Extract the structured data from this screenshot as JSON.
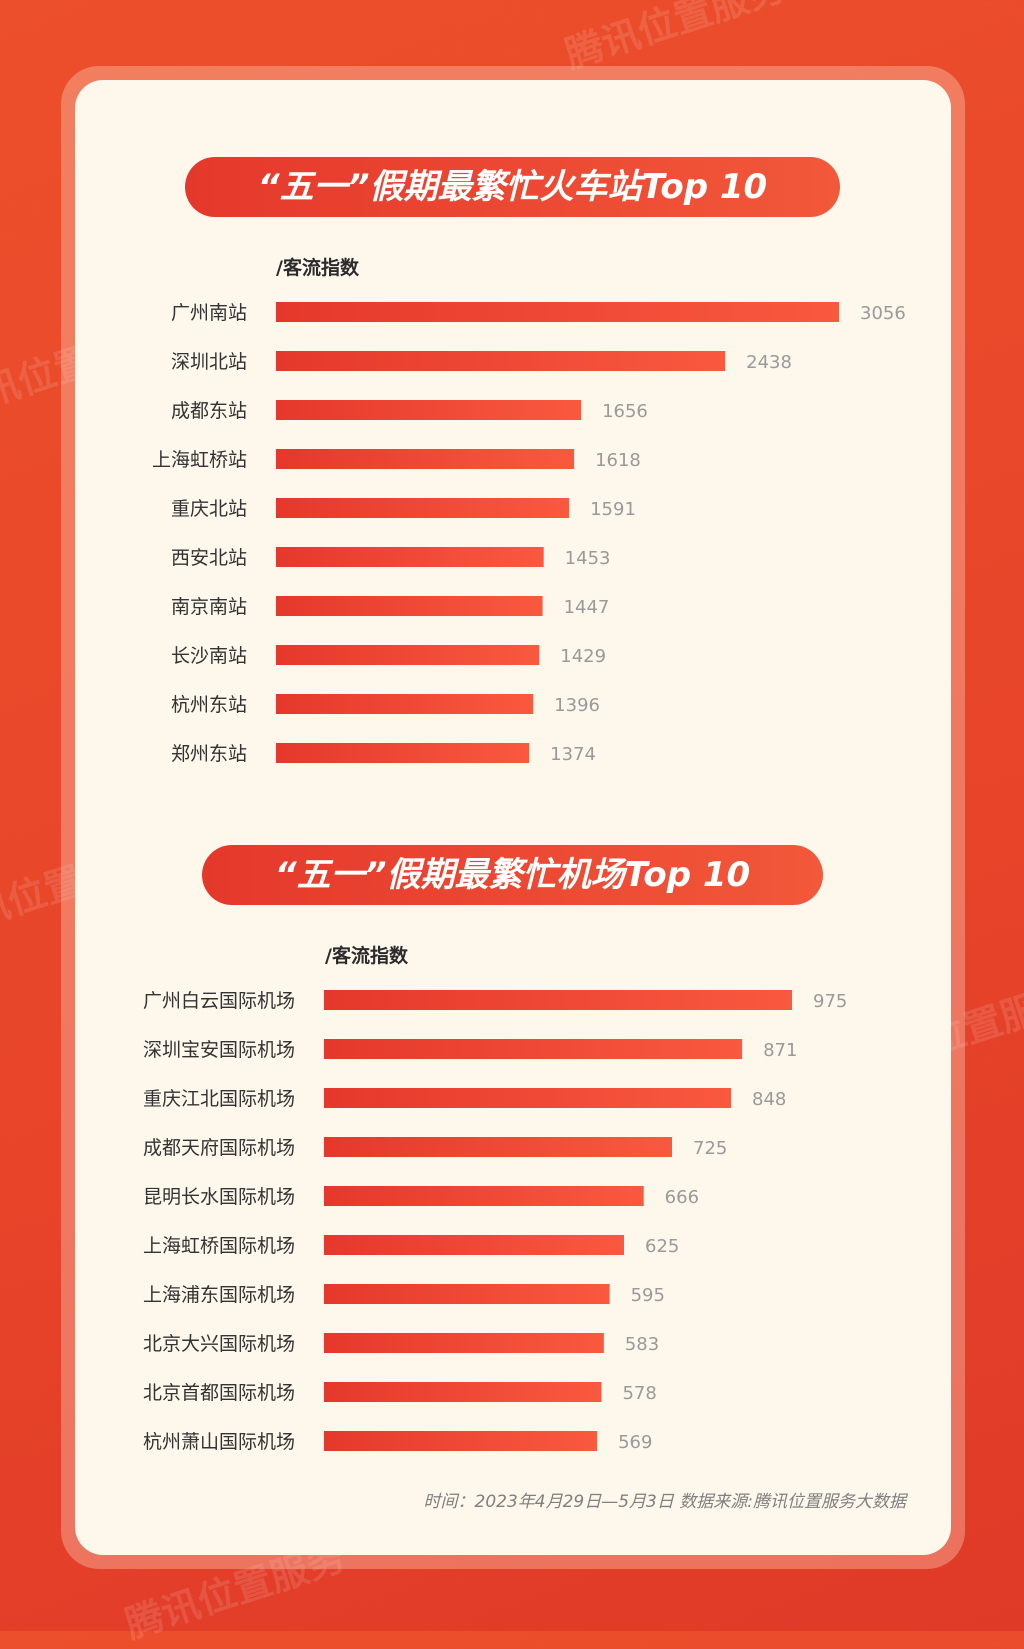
{
  "watermark": "腾讯位置服务",
  "footer": "时间：2023年4月29日—5月3日  数据来源:腾讯位置服务大数据",
  "colors": {
    "bar_start": "#e5382c",
    "bar_end": "#f9593f",
    "card_bg": "#fdf7ec",
    "background": "#e8452a"
  },
  "chart_data": [
    {
      "type": "bar",
      "orientation": "horizontal",
      "title": "“五一”假期最繁忙火车站Top 10",
      "ylabel": "/客流指数",
      "categories": [
        "广州南站",
        "深圳北站",
        "成都东站",
        "上海虹桥站",
        "重庆北站",
        "西安北站",
        "南京南站",
        "长沙南站",
        "杭州东站",
        "郑州东站"
      ],
      "values": [
        3056,
        2438,
        1656,
        1618,
        1591,
        1453,
        1447,
        1429,
        1396,
        1374
      ],
      "value_labels": [
        "3056",
        "2438",
        "1656",
        "1618",
        "1591",
        "1453",
        "1447",
        "1429",
        "1396",
        "1374"
      ],
      "xlim": [
        0,
        3056
      ],
      "grid": false,
      "legend": "none"
    },
    {
      "type": "bar",
      "orientation": "horizontal",
      "title": "“五一”假期最繁忙机场Top 10",
      "ylabel": "/客流指数",
      "categories": [
        "广州白云国际机场",
        "深圳宝安国际机场",
        "重庆江北国际机场",
        "成都天府国际机场",
        "昆明长水国际机场",
        "上海虹桥国际机场",
        "上海浦东国际机场",
        "北京大兴国际机场",
        "北京首都国际机场",
        "杭州萧山国际机场"
      ],
      "values": [
        975,
        871,
        848,
        725,
        666,
        625,
        595,
        583,
        578,
        569
      ],
      "value_labels": [
        "975",
        "871",
        "848",
        "725",
        "666",
        "625",
        "595",
        "583",
        "578",
        "569"
      ],
      "xlim": [
        0,
        975
      ],
      "grid": false,
      "legend": "none"
    }
  ]
}
